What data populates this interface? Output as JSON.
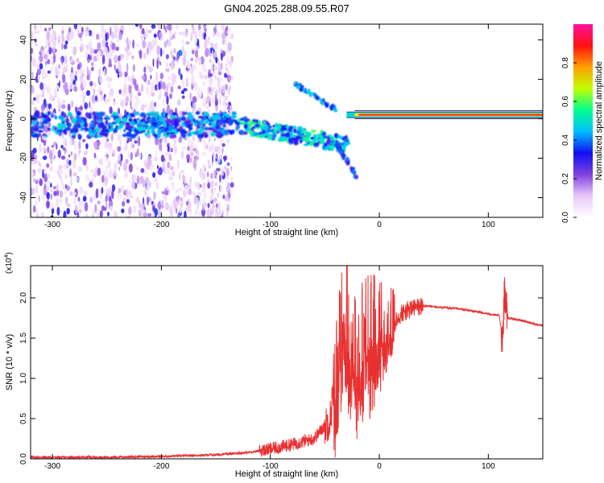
{
  "figure": {
    "title": "GN04.2025.288.09.55.R07"
  },
  "chart_data": [
    {
      "type": "heatmap",
      "xlabel": "Height of straight line (km)",
      "ylabel": "Frequency (Hz)",
      "xlim": [
        -320,
        150
      ],
      "ylim": [
        -50,
        48
      ],
      "x_ticks": [
        -300,
        -200,
        -100,
        0,
        100
      ],
      "x_tick_labels": [
        "-300",
        "-200",
        "-100",
        "0",
        "100"
      ],
      "y_ticks": [
        -40,
        -20,
        0,
        20,
        40
      ],
      "y_tick_labels": [
        "-40",
        "-20",
        "0",
        "20",
        "40"
      ],
      "colorbar": {
        "label": "Normalized spectral amplitude",
        "range": [
          0,
          1
        ],
        "ticks": [
          0,
          0.2,
          0.4,
          0.6,
          0.8
        ],
        "tick_labels": [
          "0.0",
          "0.2",
          "0.4",
          "0.6",
          "0.8"
        ],
        "colormap": [
          "#ffffff",
          "#e8c8f8",
          "#8040e0",
          "#1010f0",
          "#00c0ff",
          "#00ff90",
          "#c0ff00",
          "#ffa000",
          "#ff1010",
          "#ff10a0"
        ]
      },
      "features": [
        {
          "name": "carrier",
          "x": [
            -30,
            150
          ],
          "frequency": 2,
          "amplitude": 1.0
        },
        {
          "name": "noisy band",
          "x": [
            -320,
            -30
          ],
          "frequency": -3,
          "amplitude": 0.3
        }
      ]
    },
    {
      "type": "line",
      "xlabel": "Height of straight line (km)",
      "ylabel": "SNR (10 * v/v)",
      "y_multiplier": "(x10",
      "y_multiplier_exp": "4",
      "y_multiplier_close": ")",
      "xlim": [
        -320,
        150
      ],
      "ylim": [
        0,
        2.4
      ],
      "x_ticks": [
        -300,
        -200,
        -100,
        0,
        100
      ],
      "x_tick_labels": [
        "-300",
        "-200",
        "-100",
        "0",
        "100"
      ],
      "y_ticks": [
        0,
        0.5,
        1.0,
        1.5,
        2.0
      ],
      "y_tick_labels": [
        "0.0",
        "0.5",
        "1.0",
        "1.5",
        "2.0"
      ],
      "series": [
        {
          "color": "#e83030",
          "x": [
            -320,
            -250,
            -200,
            -150,
            -120,
            -100,
            -80,
            -60,
            -45,
            -38,
            -33,
            -28,
            -20,
            -10,
            0,
            10,
            20,
            30,
            40,
            60,
            80,
            100,
            110,
            113,
            115,
            118,
            130,
            150
          ],
          "y": [
            0.02,
            0.02,
            0.03,
            0.05,
            0.08,
            0.12,
            0.18,
            0.25,
            0.5,
            1.4,
            1.8,
            1.6,
            1.3,
            1.5,
            1.6,
            1.7,
            1.8,
            1.87,
            1.9,
            1.88,
            1.85,
            1.8,
            1.78,
            1.5,
            2.1,
            1.75,
            1.72,
            1.65
          ]
        }
      ]
    }
  ]
}
